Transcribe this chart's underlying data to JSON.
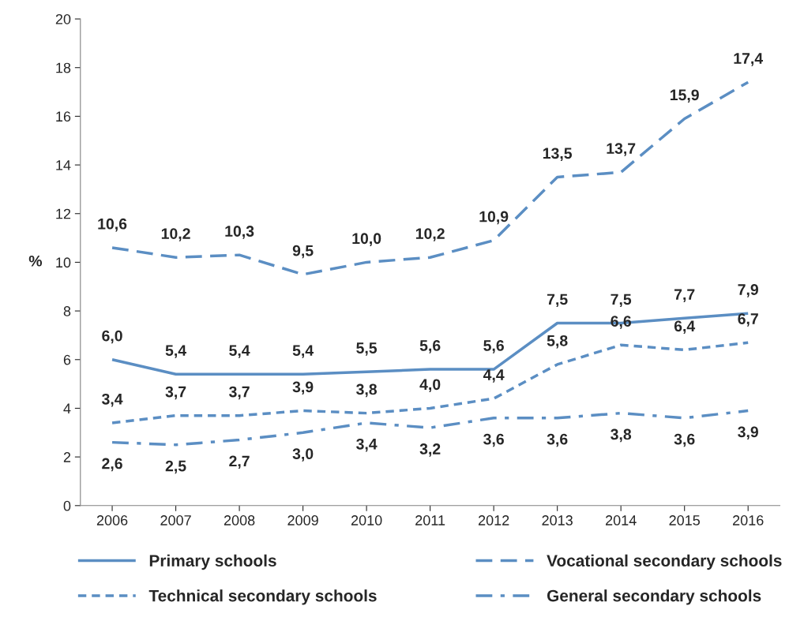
{
  "chart_data": {
    "type": "line",
    "ylabel": "%",
    "categories": [
      "2006",
      "2007",
      "2008",
      "2009",
      "2010",
      "2011",
      "2012",
      "2013",
      "2014",
      "2015",
      "2016"
    ],
    "ylim": [
      0,
      20
    ],
    "yticks": [
      0,
      2,
      4,
      6,
      8,
      10,
      12,
      14,
      16,
      18,
      20
    ],
    "grid": false,
    "legend": "bottom",
    "marker": "none",
    "series": [
      {
        "name": "Primary schools",
        "color": "#5b8ec3",
        "line_style": "solid",
        "values": [
          6.0,
          5.4,
          5.4,
          5.4,
          5.5,
          5.6,
          5.6,
          7.5,
          7.5,
          7.7,
          7.9
        ],
        "value_labels": [
          "6,0",
          "5,4",
          "5,4",
          "5,4",
          "5,5",
          "5,6",
          "5,6",
          "7,5",
          "7,5",
          "7,7",
          "7,9"
        ]
      },
      {
        "name": "Vocational secondary schools",
        "color": "#5b8ec3",
        "line_style": "dashed",
        "values": [
          10.6,
          10.2,
          10.3,
          9.5,
          10.0,
          10.2,
          10.9,
          13.5,
          13.7,
          15.9,
          17.4
        ],
        "value_labels": [
          "10,6",
          "10,2",
          "10,3",
          "9,5",
          "10,0",
          "10,2",
          "10,9",
          "13,5",
          "13,7",
          "15,9",
          "17,4"
        ]
      },
      {
        "name": "Technical secondary schools",
        "color": "#5b8ec3",
        "line_style": "dotted",
        "values": [
          3.4,
          3.7,
          3.7,
          3.9,
          3.8,
          4.0,
          4.4,
          5.8,
          6.6,
          6.4,
          6.7
        ],
        "value_labels": [
          "3,4",
          "3,7",
          "3,7",
          "3,9",
          "3,8",
          "4,0",
          "4,4",
          "5,8",
          "6,6",
          "6,4",
          "6,7"
        ]
      },
      {
        "name": "General secondary schools",
        "color": "#5b8ec3",
        "line_style": "dashdot",
        "values": [
          2.6,
          2.5,
          2.7,
          3.0,
          3.4,
          3.2,
          3.6,
          3.6,
          3.8,
          3.6,
          3.9
        ],
        "value_labels": [
          "2,6",
          "2,5",
          "2,7",
          "3,0",
          "3,4",
          "3,2",
          "3,6",
          "3,6",
          "3,8",
          "3,6",
          "3,9"
        ]
      }
    ]
  }
}
